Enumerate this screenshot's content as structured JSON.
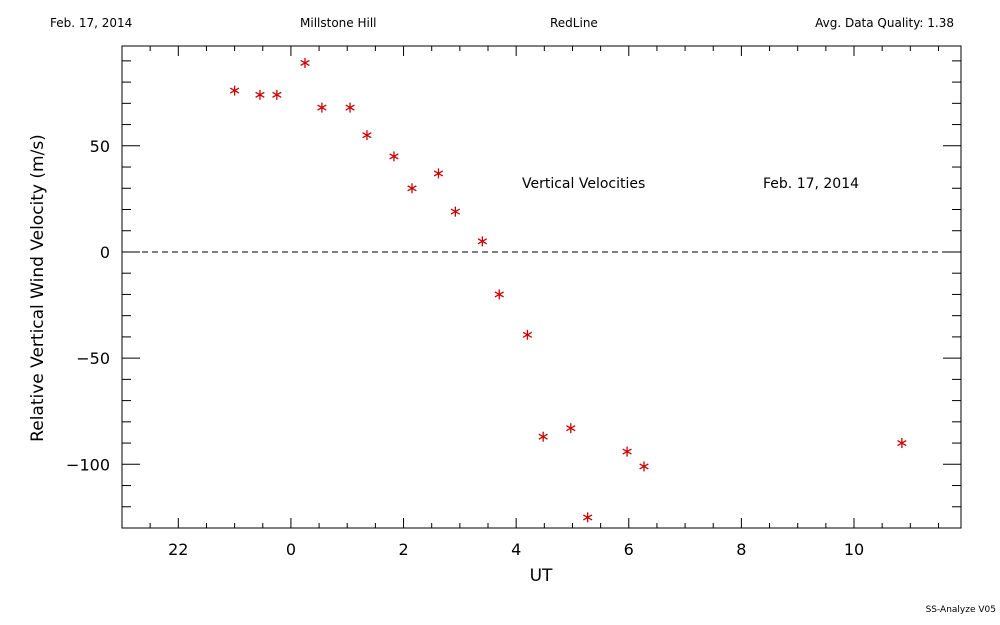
{
  "header": {
    "date": "Feb. 17, 2014",
    "site": "Millstone Hill",
    "filter": "RedLine",
    "quality": "Avg. Data Quality: 1.38"
  },
  "footer": "SS-Analyze V05",
  "chart_data": {
    "type": "scatter",
    "title": "Vertical Velocities",
    "annotation": "Feb. 17, 2014",
    "xlabel": "UT",
    "ylabel": "Relative Vertical Wind Velocity (m/s)",
    "xlim": [
      21.0,
      11.9
    ],
    "x_wrap_at": 24,
    "ylim": [
      -130,
      97
    ],
    "xticks": [
      22,
      0,
      2,
      4,
      6,
      8,
      10
    ],
    "yticks": [
      50,
      0,
      -50,
      -100
    ],
    "zero_line": "dashed",
    "marker": "asterisk",
    "marker_color": "#cc0000",
    "points": [
      {
        "x": 23.0,
        "y": 76
      },
      {
        "x": 23.45,
        "y": 74
      },
      {
        "x": 23.75,
        "y": 74
      },
      {
        "x": 0.25,
        "y": 89
      },
      {
        "x": 0.55,
        "y": 68
      },
      {
        "x": 1.05,
        "y": 68
      },
      {
        "x": 1.35,
        "y": 55
      },
      {
        "x": 1.83,
        "y": 45
      },
      {
        "x": 2.15,
        "y": 30
      },
      {
        "x": 2.62,
        "y": 37
      },
      {
        "x": 2.92,
        "y": 19
      },
      {
        "x": 3.4,
        "y": 5
      },
      {
        "x": 3.7,
        "y": -20
      },
      {
        "x": 4.2,
        "y": -39
      },
      {
        "x": 4.48,
        "y": -87
      },
      {
        "x": 4.97,
        "y": -83
      },
      {
        "x": 5.27,
        "y": -125
      },
      {
        "x": 5.97,
        "y": -94
      },
      {
        "x": 6.27,
        "y": -101
      },
      {
        "x": 10.85,
        "y": -90
      }
    ]
  }
}
